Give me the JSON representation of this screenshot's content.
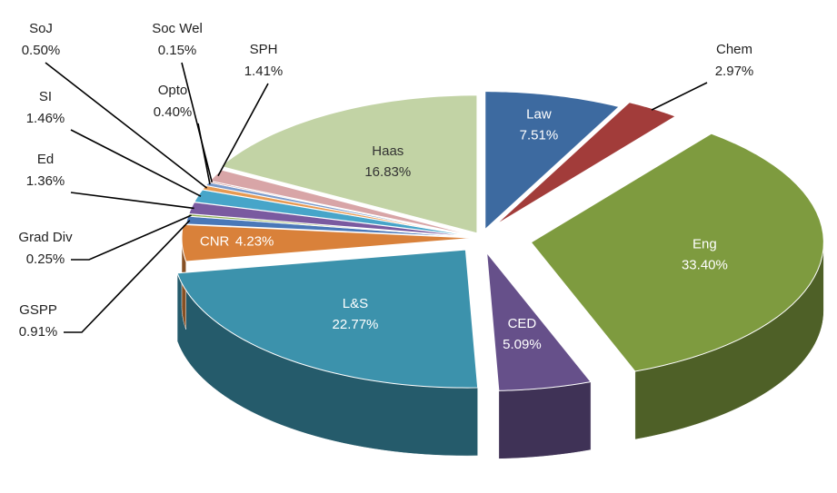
{
  "chart_data": {
    "type": "pie3d",
    "categories": [
      "Law",
      "Chem",
      "Eng",
      "CED",
      "L&S",
      "CNR",
      "GSPP",
      "Grad Div",
      "Ed",
      "SI",
      "SoJ",
      "Opto",
      "Soc Wel",
      "SPH",
      "Haas"
    ],
    "values": [
      7.51,
      2.97,
      33.4,
      5.09,
      22.77,
      4.23,
      0.91,
      0.25,
      1.36,
      1.46,
      0.5,
      0.4,
      0.15,
      1.41,
      16.83
    ],
    "value_labels": [
      "7.51%",
      "2.97%",
      "33.40%",
      "5.09%",
      "22.77%",
      "4.23%",
      "0.91%",
      "0.25%",
      "1.36%",
      "1.46%",
      "0.50%",
      "0.40%",
      "0.15%",
      "1.41%",
      "16.83%"
    ],
    "colors": [
      "#3d6aa0",
      "#a23c3a",
      "#7e9b3f",
      "#66508a",
      "#3c92ac",
      "#d9813a",
      "#4a78b8",
      "#8fae52",
      "#7a5aa0",
      "#47a5c9",
      "#e89a52",
      "#7a9bcc",
      "#c87c7a",
      "#d8a5a7",
      "#c2d3a5"
    ]
  }
}
